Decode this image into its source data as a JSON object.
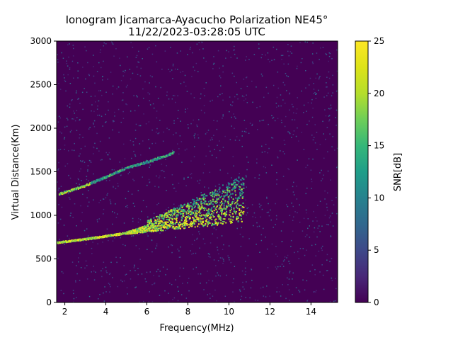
{
  "chart_data": {
    "type": "heatmap",
    "title": "Ionogram Jicamarca-Ayacucho Polarization NE45°",
    "subtitle": "11/22/2023-03:28:05 UTC",
    "xlabel": "Frequency(MHz)",
    "ylabel": "Virtual Distance(Km)",
    "xlim": [
      1.6,
      15.3
    ],
    "ylim": [
      0,
      3000
    ],
    "xticks": [
      2,
      4,
      6,
      8,
      10,
      12,
      14
    ],
    "yticks": [
      0,
      500,
      1000,
      1500,
      2000,
      2500,
      3000
    ],
    "colorbar": {
      "label": "SNR[dB]",
      "range": [
        0,
        25
      ],
      "ticks": [
        0,
        5,
        10,
        15,
        20,
        25
      ],
      "colormap": "viridis"
    },
    "traces": [
      {
        "points": [
          [
            1.6,
            690
          ],
          [
            3,
            730
          ],
          [
            4,
            765
          ],
          [
            5,
            800
          ],
          [
            6,
            840
          ],
          [
            7,
            880
          ],
          [
            8,
            920
          ],
          [
            9,
            960
          ],
          [
            10,
            1000
          ],
          [
            10.7,
            1040
          ]
        ]
      },
      {
        "points": [
          [
            1.7,
            1250
          ],
          [
            3,
            1350
          ],
          [
            4,
            1450
          ],
          [
            5,
            1550
          ],
          [
            6,
            1620
          ],
          [
            7,
            1700
          ],
          [
            7.3,
            1730
          ]
        ]
      }
    ],
    "grid": false
  }
}
